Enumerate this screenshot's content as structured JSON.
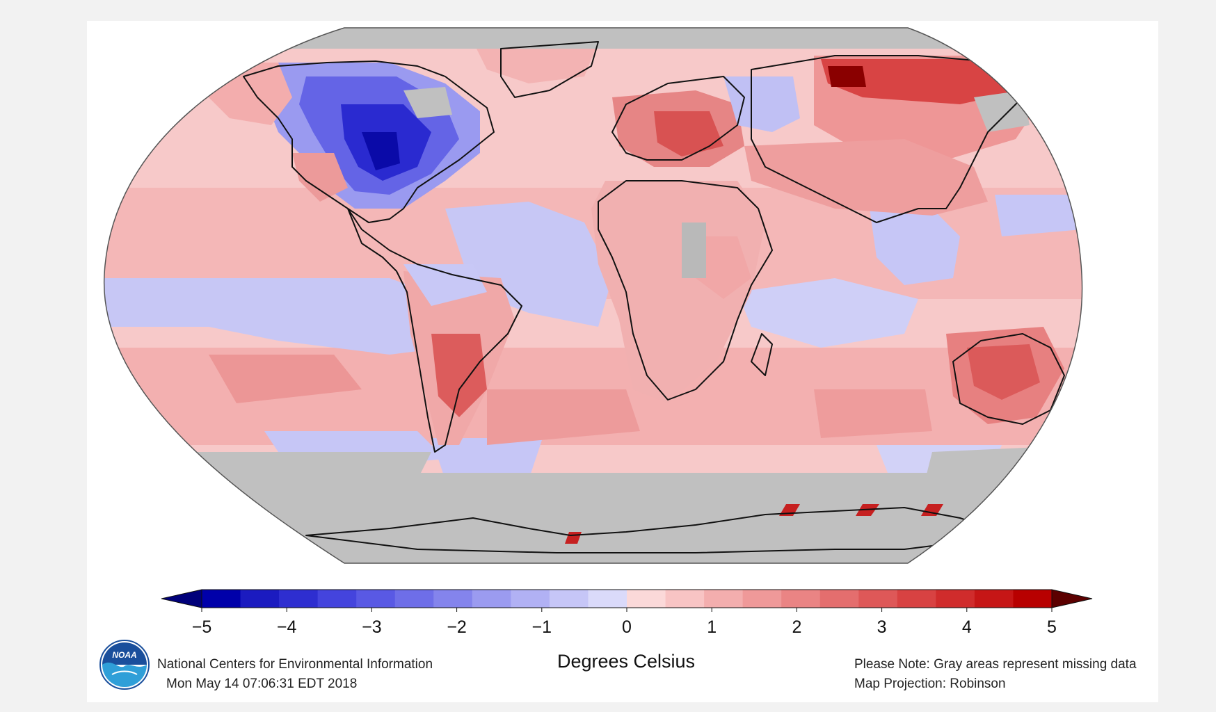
{
  "map": {
    "projection_note": "Map Projection: Robinson",
    "missing_note": "Please Note: Gray areas represent missing data",
    "units_label": "Degrees Celsius",
    "missing_color": "#c0c0c0",
    "ocean_fill_default": "#f6c6c6"
  },
  "legend": {
    "min": -5,
    "max": 5,
    "tick_labels": [
      "−5",
      "−4",
      "−3",
      "−2",
      "−1",
      "0",
      "1",
      "2",
      "3",
      "4",
      "5"
    ],
    "colors": [
      "#0000aa",
      "#1b1bc0",
      "#2e2ed0",
      "#4444dd",
      "#5959e4",
      "#6e6ee8",
      "#8484ec",
      "#9b9bf0",
      "#b1b1f4",
      "#c6c6f7",
      "#dadafa",
      "#fbd9d9",
      "#f8c4c4",
      "#f3aeae",
      "#ef9999",
      "#ea8484",
      "#e46e6e",
      "#de5858",
      "#d84242",
      "#d02c2c",
      "#c61616",
      "#b80000"
    ],
    "under_color": "#00007a",
    "over_color": "#5c0000"
  },
  "footer": {
    "agency": "National Centers for Environmental Information",
    "timestamp": "Mon May 14 07:06:31 EDT 2018",
    "logo_text": "NOAA"
  },
  "anomaly_regions": [
    {
      "region": "Canada / northeastern United States",
      "anomaly_c": -4.5
    },
    {
      "region": "Western Europe",
      "anomaly_c": 3.0
    },
    {
      "region": "Eastern Europe",
      "anomaly_c": 3.5
    },
    {
      "region": "Northern Siberia",
      "anomaly_c": 4.5
    },
    {
      "region": "Central Russia",
      "anomaly_c": -1.2
    },
    {
      "region": "Southern Asia",
      "anomaly_c": 1.8
    },
    {
      "region": "Australia",
      "anomaly_c": 2.8
    },
    {
      "region": "Southern South America",
      "anomaly_c": 2.7
    },
    {
      "region": "Equatorial Pacific",
      "anomaly_c": -1.0
    },
    {
      "region": "Southern Ocean (south of Africa)",
      "anomaly_c": 1.2
    },
    {
      "region": "Southeast Asia",
      "anomaly_c": -0.6
    },
    {
      "region": "Antarctica",
      "anomaly_c": null
    }
  ]
}
